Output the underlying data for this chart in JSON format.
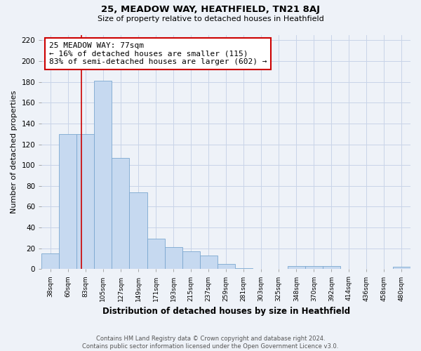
{
  "title": "25, MEADOW WAY, HEATHFIELD, TN21 8AJ",
  "subtitle": "Size of property relative to detached houses in Heathfield",
  "xlabel": "Distribution of detached houses by size in Heathfield",
  "ylabel": "Number of detached properties",
  "bar_labels": [
    "38sqm",
    "60sqm",
    "83sqm",
    "105sqm",
    "127sqm",
    "149sqm",
    "171sqm",
    "193sqm",
    "215sqm",
    "237sqm",
    "259sqm",
    "281sqm",
    "303sqm",
    "325sqm",
    "348sqm",
    "370sqm",
    "392sqm",
    "414sqm",
    "436sqm",
    "458sqm",
    "480sqm"
  ],
  "bar_values": [
    15,
    130,
    130,
    181,
    107,
    74,
    29,
    21,
    17,
    13,
    5,
    1,
    0,
    0,
    3,
    3,
    3,
    0,
    0,
    0,
    2
  ],
  "bar_color": "#c6d9f0",
  "bar_edge_color": "#7ba7d0",
  "property_line_label": "25 MEADOW WAY: 77sqm",
  "annotation_line1": "← 16% of detached houses are smaller (115)",
  "annotation_line2": "83% of semi-detached houses are larger (602) →",
  "annotation_box_color": "#ffffff",
  "annotation_box_edge_color": "#cc0000",
  "vline_color": "#cc0000",
  "ylim": [
    0,
    225
  ],
  "yticks": [
    0,
    20,
    40,
    60,
    80,
    100,
    120,
    140,
    160,
    180,
    200,
    220
  ],
  "footer_line1": "Contains HM Land Registry data © Crown copyright and database right 2024.",
  "footer_line2": "Contains public sector information licensed under the Open Government Licence v3.0.",
  "bg_color": "#eef2f8",
  "plot_bg_color": "#eef2f8",
  "grid_color": "#c8d4e8"
}
